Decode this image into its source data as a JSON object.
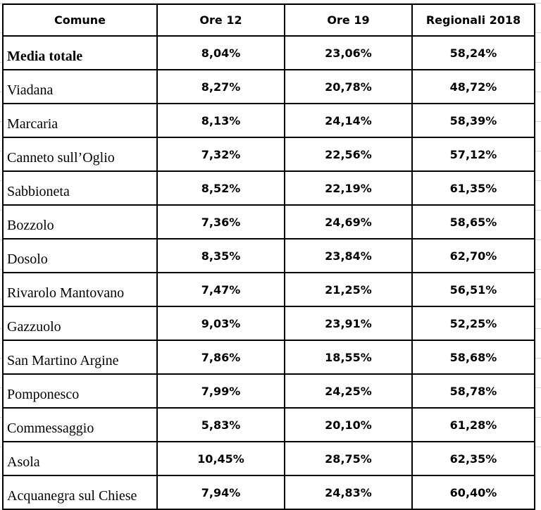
{
  "headers": [
    "Comune",
    "Ore 12",
    "Ore 19",
    "Regionali 2018"
  ],
  "rows": [
    {
      "comune": "Media totale",
      "ore12": "8,04%",
      "ore19": "23,06%",
      "regionali2018": "58,24%"
    },
    {
      "comune": "Viadana",
      "ore12": "8,27%",
      "ore19": "20,78%",
      "regionali2018": "48,72%"
    },
    {
      "comune": "Marcaria",
      "ore12": "8,13%",
      "ore19": "24,14%",
      "regionali2018": "58,39%"
    },
    {
      "comune": "Canneto sull’Oglio",
      "ore12": "7,32%",
      "ore19": "22,56%",
      "regionali2018": "57,12%"
    },
    {
      "comune": "Sabbioneta",
      "ore12": "8,52%",
      "ore19": "22,19%",
      "regionali2018": "61,35%"
    },
    {
      "comune": "Bozzolo",
      "ore12": "7,36%",
      "ore19": "24,69%",
      "regionali2018": "58,65%"
    },
    {
      "comune": "Dosolo",
      "ore12": "8,35%",
      "ore19": "23,84%",
      "regionali2018": "62,70%"
    },
    {
      "comune": "Rivarolo Mantovano",
      "ore12": "7,47%",
      "ore19": "21,25%",
      "regionali2018": "56,51%"
    },
    {
      "comune": "Gazzuolo",
      "ore12": "9,03%",
      "ore19": "23,91%",
      "regionali2018": "52,25%"
    },
    {
      "comune": "San Martino Argine",
      "ore12": "7,86%",
      "ore19": "18,55%",
      "regionali2018": "58,68%"
    },
    {
      "comune": "Pomponesco",
      "ore12": "7,99%",
      "ore19": "24,25%",
      "regionali2018": "58,78%"
    },
    {
      "comune": "Commessaggio",
      "ore12": "5,83%",
      "ore19": "20,10%",
      "regionali2018": "61,28%"
    },
    {
      "comune": "Asola",
      "ore12": "10,45%",
      "ore19": "28,75%",
      "regionali2018": "62,35%"
    },
    {
      "comune": "Acquanegra sul Chiese",
      "ore12": "7,94%",
      "ore19": "24,83%",
      "regionali2018": "60,40%"
    }
  ]
}
